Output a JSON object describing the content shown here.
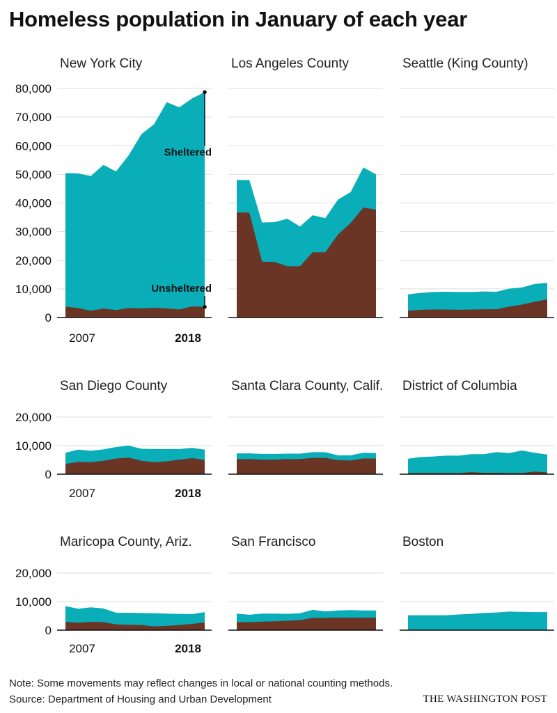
{
  "title": "Homeless population in January of each year",
  "note": "Note: Some movements may reflect changes in local or national counting methods.",
  "source": "Source: Department of Housing and Urban Development",
  "credit": "THE WASHINGTON POST",
  "colors": {
    "sheltered": "#09AEB8",
    "unsheltered": "#6B3525",
    "gridline": "#dddddd",
    "baseline": "#111111",
    "text": "#222222"
  },
  "chart_data": [
    {
      "type": "area",
      "title": "New York City",
      "x": [
        2007,
        2008,
        2009,
        2010,
        2011,
        2012,
        2013,
        2014,
        2015,
        2016,
        2017,
        2018
      ],
      "x_tick_labels": [
        "2007",
        "2018"
      ],
      "y_ticks": [
        "80,000",
        "70,000",
        "60,000",
        "50,000",
        "40,000",
        "30,000",
        "20,000",
        "10,000",
        "0"
      ],
      "ylim": [
        0,
        80000
      ],
      "stacked": true,
      "series": [
        {
          "name": "Unsheltered",
          "values": [
            3800,
            3300,
            2400,
            3100,
            2600,
            3300,
            3200,
            3400,
            3200,
            2800,
            3900,
            3700
          ]
        },
        {
          "name": "Sheltered",
          "values": [
            46600,
            47000,
            47000,
            50200,
            48400,
            53400,
            60800,
            64100,
            72000,
            70600,
            72600,
            75000
          ]
        }
      ],
      "annotations": [
        "Sheltered",
        "Unsheltered"
      ]
    },
    {
      "type": "area",
      "title": "Los Angeles County",
      "x": [
        2007,
        2008,
        2009,
        2010,
        2011,
        2012,
        2013,
        2014,
        2015,
        2016,
        2017,
        2018
      ],
      "ylim": [
        0,
        80000
      ],
      "stacked": true,
      "series": [
        {
          "name": "Unsheltered",
          "values": [
            36700,
            36600,
            19500,
            19400,
            17900,
            17900,
            22800,
            22800,
            29000,
            33000,
            38400,
            37700
          ]
        },
        {
          "name": "Sheltered",
          "values": [
            11300,
            11400,
            13700,
            13900,
            16600,
            13900,
            12900,
            11900,
            12200,
            10800,
            14000,
            12300
          ]
        }
      ]
    },
    {
      "type": "area",
      "title": "Seattle (King County)",
      "x": [
        2007,
        2008,
        2009,
        2010,
        2011,
        2012,
        2013,
        2014,
        2015,
        2016,
        2017,
        2018
      ],
      "ylim": [
        0,
        80000
      ],
      "stacked": true,
      "series": [
        {
          "name": "Unsheltered",
          "values": [
            2400,
            2700,
            2800,
            2800,
            2700,
            2800,
            2900,
            2900,
            3800,
            4500,
            5500,
            6300
          ]
        },
        {
          "name": "Sheltered",
          "values": [
            5700,
            5900,
            6100,
            6200,
            6200,
            6100,
            6200,
            6100,
            6300,
            6000,
            6200,
            5800
          ]
        }
      ]
    },
    {
      "type": "area",
      "title": "San Diego County",
      "x": [
        2007,
        2008,
        2009,
        2010,
        2011,
        2012,
        2013,
        2014,
        2015,
        2016,
        2017,
        2018
      ],
      "x_tick_labels": [
        "2007",
        "2018"
      ],
      "y_ticks": [
        "20,000",
        "10,000",
        "0"
      ],
      "ylim": [
        0,
        20000
      ],
      "stacked": true,
      "series": [
        {
          "name": "Unsheltered",
          "values": [
            3600,
            4300,
            4200,
            4700,
            5500,
            5800,
            4700,
            4200,
            4500,
            5100,
            5600,
            5000
          ]
        },
        {
          "name": "Sheltered",
          "values": [
            3900,
            4300,
            4000,
            4000,
            4000,
            4200,
            4200,
            4600,
            4300,
            3700,
            3600,
            3600
          ]
        }
      ]
    },
    {
      "type": "area",
      "title": "Santa Clara County, Calif.",
      "x": [
        2007,
        2008,
        2009,
        2010,
        2011,
        2012,
        2013,
        2014,
        2015,
        2016,
        2017,
        2018
      ],
      "ylim": [
        0,
        20000
      ],
      "stacked": true,
      "series": [
        {
          "name": "Unsheltered",
          "values": [
            5300,
            5300,
            5100,
            5100,
            5300,
            5300,
            5700,
            5700,
            4900,
            4800,
            5500,
            5500
          ]
        },
        {
          "name": "Sheltered",
          "values": [
            2000,
            2000,
            2000,
            2000,
            1900,
            1900,
            2000,
            2000,
            1700,
            1800,
            2000,
            1900
          ]
        }
      ]
    },
    {
      "type": "area",
      "title": "District of Columbia",
      "x": [
        2007,
        2008,
        2009,
        2010,
        2011,
        2012,
        2013,
        2014,
        2015,
        2016,
        2017,
        2018
      ],
      "ylim": [
        0,
        20000
      ],
      "stacked": true,
      "series": [
        {
          "name": "Unsheltered",
          "values": [
            400,
            400,
            400,
            400,
            400,
            700,
            500,
            500,
            400,
            400,
            900,
            600
          ]
        },
        {
          "name": "Sheltered",
          "values": [
            5000,
            5600,
            5800,
            6100,
            6100,
            6300,
            6500,
            7200,
            7000,
            7900,
            6600,
            6300
          ]
        }
      ]
    },
    {
      "type": "area",
      "title": "Maricopa County, Ariz.",
      "x": [
        2007,
        2008,
        2009,
        2010,
        2011,
        2012,
        2013,
        2014,
        2015,
        2016,
        2017,
        2018
      ],
      "x_tick_labels": [
        "2007",
        "2018"
      ],
      "y_ticks": [
        "20,000",
        "10,000",
        "0"
      ],
      "ylim": [
        0,
        20000
      ],
      "stacked": true,
      "series": [
        {
          "name": "Unsheltered",
          "values": [
            2900,
            2600,
            2900,
            2800,
            2000,
            1900,
            1800,
            1300,
            1500,
            1800,
            2200,
            2700
          ]
        },
        {
          "name": "Sheltered",
          "values": [
            5500,
            4900,
            5100,
            4800,
            4100,
            4200,
            4200,
            4600,
            4300,
            3900,
            3400,
            3600
          ]
        }
      ]
    },
    {
      "type": "area",
      "title": "San Francisco",
      "x": [
        2007,
        2008,
        2009,
        2010,
        2011,
        2012,
        2013,
        2014,
        2015,
        2016,
        2017,
        2018
      ],
      "ylim": [
        0,
        20000
      ],
      "stacked": true,
      "series": [
        {
          "name": "Unsheltered",
          "values": [
            2800,
            2800,
            3000,
            3100,
            3300,
            3500,
            4300,
            4300,
            4400,
            4400,
            4400,
            4400
          ]
        },
        {
          "name": "Sheltered",
          "values": [
            3000,
            2600,
            2800,
            2700,
            2400,
            2400,
            2800,
            2300,
            2500,
            2600,
            2500,
            2500
          ]
        }
      ]
    },
    {
      "type": "area",
      "title": "Boston",
      "x": [
        2007,
        2008,
        2009,
        2010,
        2011,
        2012,
        2013,
        2014,
        2015,
        2016,
        2017,
        2018
      ],
      "ylim": [
        0,
        20000
      ],
      "stacked": true,
      "series": [
        {
          "name": "Unsheltered",
          "values": [
            150,
            150,
            150,
            150,
            150,
            150,
            150,
            150,
            150,
            150,
            150,
            150
          ]
        },
        {
          "name": "Sheltered",
          "values": [
            5050,
            5050,
            5050,
            5050,
            5350,
            5550,
            5850,
            6050,
            6350,
            6250,
            6150,
            6150
          ]
        }
      ]
    }
  ]
}
